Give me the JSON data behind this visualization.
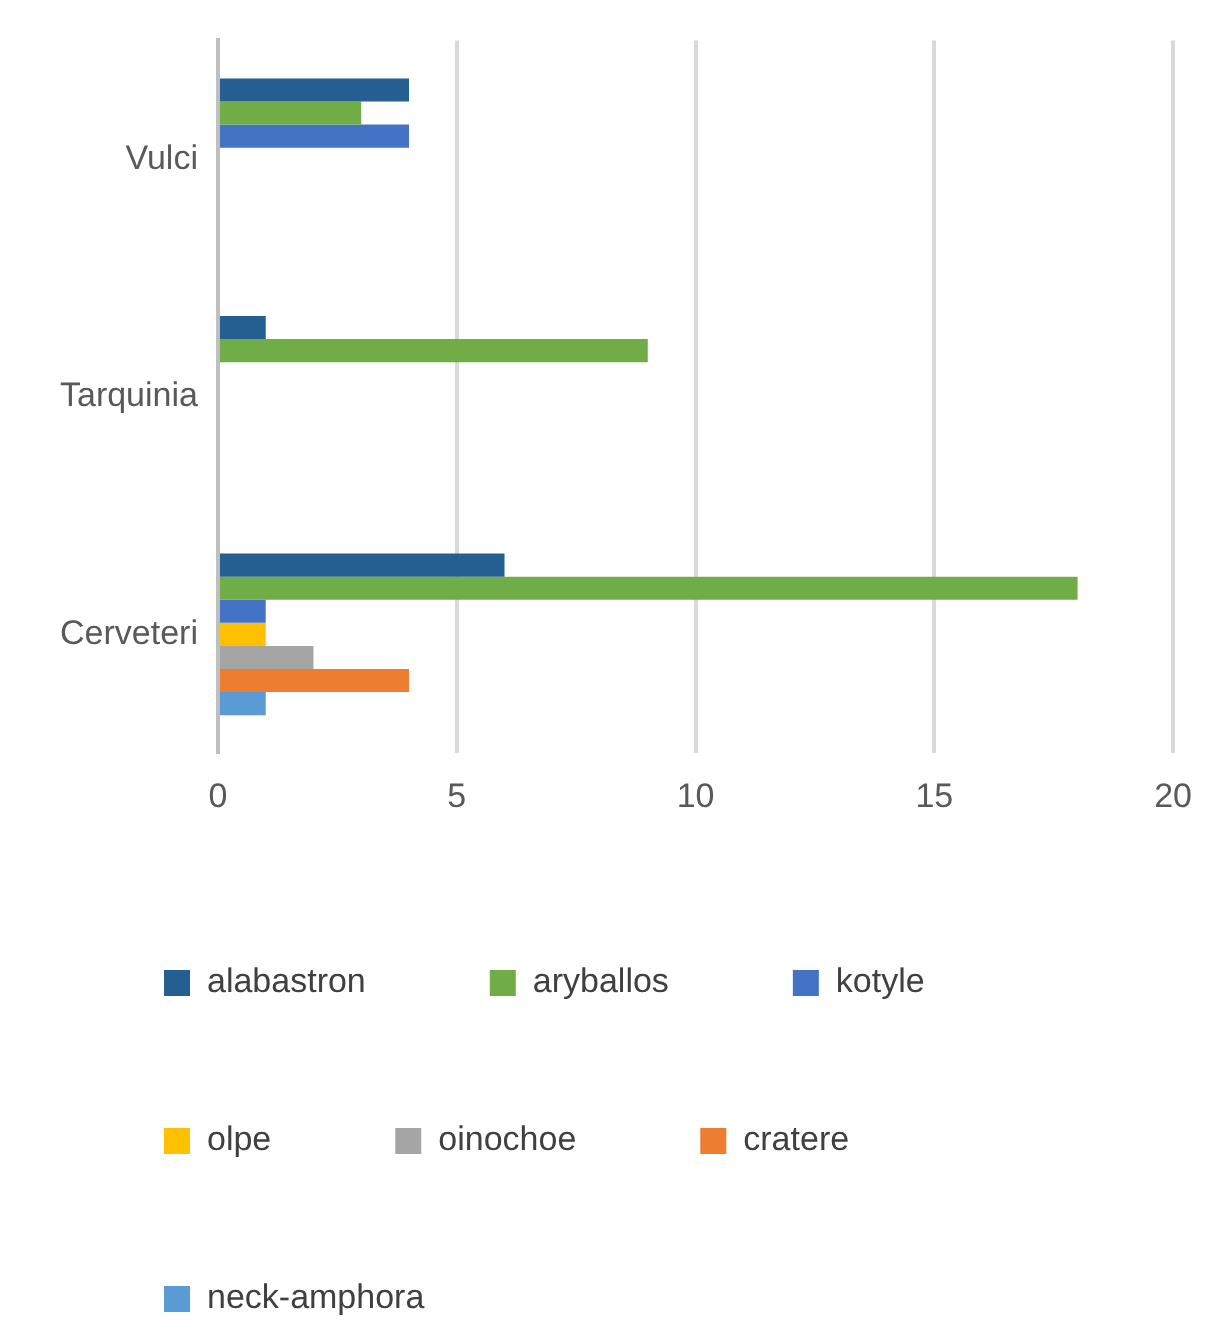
{
  "chart_data": {
    "type": "bar",
    "orientation": "horizontal",
    "categories": [
      "Vulci",
      "Tarquinia",
      "Cerveteri"
    ],
    "series": [
      {
        "name": "alabastron",
        "color": "#255e91",
        "values": [
          4,
          1,
          6
        ]
      },
      {
        "name": "aryballos",
        "color": "#70ad47",
        "values": [
          3,
          9,
          18
        ]
      },
      {
        "name": "kotyle",
        "color": "#4472c4",
        "values": [
          4,
          0,
          1
        ]
      },
      {
        "name": "olpe",
        "color": "#ffc000",
        "values": [
          0,
          0,
          1
        ]
      },
      {
        "name": "oinochoe",
        "color": "#a5a5a5",
        "values": [
          0,
          0,
          2
        ]
      },
      {
        "name": "cratere",
        "color": "#ed7d31",
        "values": [
          0,
          0,
          4
        ]
      },
      {
        "name": "neck-amphora",
        "color": "#5b9bd5",
        "values": [
          0,
          0,
          1
        ]
      }
    ],
    "xlim": [
      0,
      20
    ],
    "xticks": [
      0,
      5,
      10,
      15,
      20
    ],
    "grid": "x",
    "legend": "bottom"
  }
}
